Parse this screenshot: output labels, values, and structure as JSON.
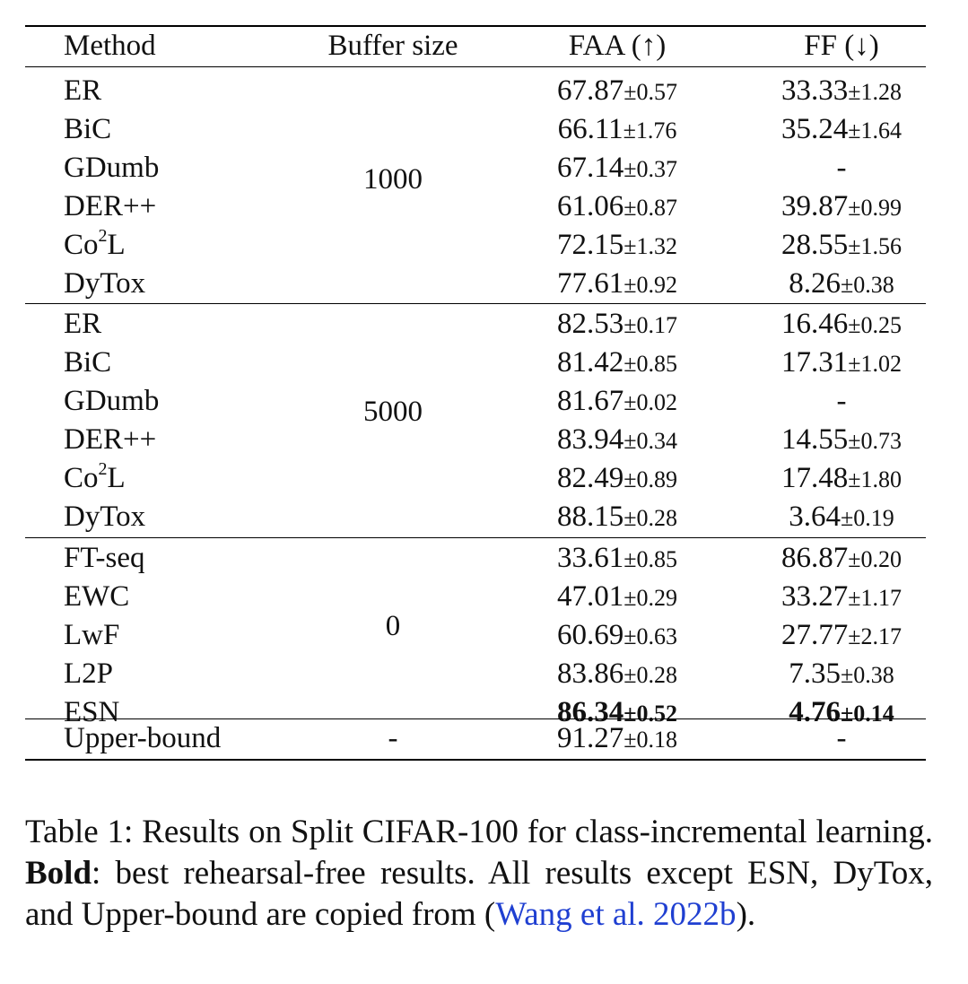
{
  "table": {
    "headers": {
      "method": "Method",
      "buffer": "Buffer size",
      "faa": "FAA (↑)",
      "ff": "FF (↓)"
    },
    "groups": [
      {
        "buffer": "1000",
        "rows": [
          {
            "method": "ER",
            "faa": "67.87",
            "faa_pm": "±0.57",
            "ff": "33.33",
            "ff_pm": "±1.28"
          },
          {
            "method": "BiC",
            "faa": "66.11",
            "faa_pm": "±1.76",
            "ff": "35.24",
            "ff_pm": "±1.64"
          },
          {
            "method": "GDumb",
            "faa": "67.14",
            "faa_pm": "±0.37",
            "ff": "-",
            "ff_pm": ""
          },
          {
            "method": "DER++",
            "faa": "61.06",
            "faa_pm": "±0.87",
            "ff": "39.87",
            "ff_pm": "±0.99"
          },
          {
            "method_base": "Co",
            "method_sup": "2",
            "method_tail": "L",
            "faa": "72.15",
            "faa_pm": "±1.32",
            "ff": "28.55",
            "ff_pm": "±1.56"
          },
          {
            "method": "DyTox",
            "faa": "77.61",
            "faa_pm": "±0.92",
            "ff": "8.26",
            "ff_pm": "±0.38"
          }
        ]
      },
      {
        "buffer": "5000",
        "rows": [
          {
            "method": "ER",
            "faa": "82.53",
            "faa_pm": "±0.17",
            "ff": "16.46",
            "ff_pm": "±0.25"
          },
          {
            "method": "BiC",
            "faa": "81.42",
            "faa_pm": "±0.85",
            "ff": "17.31",
            "ff_pm": "±1.02"
          },
          {
            "method": "GDumb",
            "faa": "81.67",
            "faa_pm": "±0.02",
            "ff": "-",
            "ff_pm": ""
          },
          {
            "method": "DER++",
            "faa": "83.94",
            "faa_pm": "±0.34",
            "ff": "14.55",
            "ff_pm": "±0.73"
          },
          {
            "method_base": "Co",
            "method_sup": "2",
            "method_tail": "L",
            "faa": "82.49",
            "faa_pm": "±0.89",
            "ff": "17.48",
            "ff_pm": "±1.80"
          },
          {
            "method": "DyTox",
            "faa": "88.15",
            "faa_pm": "±0.28",
            "ff": "3.64",
            "ff_pm": "±0.19"
          }
        ]
      },
      {
        "buffer": "0",
        "rows": [
          {
            "method": "FT-seq",
            "faa": "33.61",
            "faa_pm": "±0.85",
            "ff": "86.87",
            "ff_pm": "±0.20"
          },
          {
            "method": "EWC",
            "faa": "47.01",
            "faa_pm": "±0.29",
            "ff": "33.27",
            "ff_pm": "±1.17"
          },
          {
            "method": "LwF",
            "faa": "60.69",
            "faa_pm": "±0.63",
            "ff": "27.77",
            "ff_pm": "±2.17"
          },
          {
            "method": "L2P",
            "faa": "83.86",
            "faa_pm": "±0.28",
            "ff": "7.35",
            "ff_pm": "±0.38"
          },
          {
            "method": "ESN",
            "faa": "86.34",
            "faa_pm": "±0.52",
            "ff": "4.76",
            "ff_pm": "±0.14"
          }
        ]
      },
      {
        "buffer": "-",
        "rows": [
          {
            "method": "Upper-bound",
            "faa": "91.27",
            "faa_pm": "±0.18",
            "ff": "-",
            "ff_pm": ""
          }
        ]
      }
    ]
  },
  "caption": {
    "prefix": "Table 1: Results on Split CIFAR-100 for class-incremental learning. ",
    "bold": "Bold",
    "middle": ": best rehearsal-free results. All results except ESN, DyTox, and Upper-bound are copied from (",
    "cite": "Wang et al. 2022b",
    "suffix": ")."
  }
}
